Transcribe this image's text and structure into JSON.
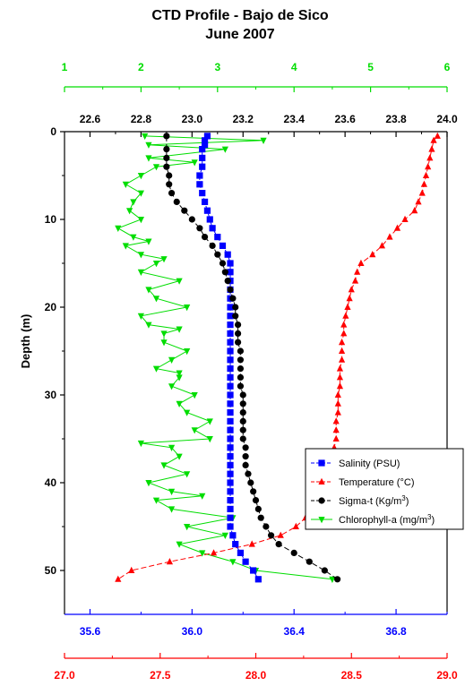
{
  "chart_data": {
    "type": "line",
    "title": "CTD Profile - Bajo de Sico",
    "subtitle": "June 2007",
    "ylabel": "Depth (m)",
    "ylim": [
      0,
      55
    ],
    "y_ticks": [
      0,
      10,
      20,
      30,
      40,
      50
    ],
    "y_tick_labels": [
      "0",
      "10",
      "20",
      "30",
      "40",
      "50"
    ],
    "y_inverted": true,
    "axes": {
      "chlorophyll": {
        "position": "top-outer",
        "color": "#00dd00",
        "range": [
          1,
          6
        ],
        "ticks": [
          1,
          2,
          3,
          4,
          5,
          6
        ],
        "tick_labels": [
          "1",
          "2",
          "3",
          "4",
          "5",
          "6"
        ]
      },
      "sigma": {
        "position": "top-inner",
        "color": "#000000",
        "range": [
          22.5,
          24.0
        ],
        "ticks": [
          22.6,
          22.8,
          23.0,
          23.2,
          23.4,
          23.6,
          23.8,
          24.0
        ],
        "tick_labels": [
          "22.6",
          "22.8",
          "23.0",
          "23.2",
          "23.4",
          "23.6",
          "23.8",
          "24.0"
        ]
      },
      "salinity": {
        "position": "bottom-inner",
        "color": "#0000ff",
        "range": [
          35.5,
          37.0
        ],
        "ticks": [
          35.6,
          36.0,
          36.4,
          36.8
        ],
        "tick_labels": [
          "35.6",
          "36.0",
          "36.4",
          "36.8"
        ]
      },
      "temperature": {
        "position": "bottom-outer",
        "color": "#ff0000",
        "range": [
          27.0,
          29.0
        ],
        "ticks": [
          27.0,
          27.5,
          28.0,
          28.5,
          29.0
        ],
        "tick_labels": [
          "27.0",
          "27.5",
          "28.0",
          "28.5",
          "29.0"
        ]
      }
    },
    "legend": {
      "position": "right",
      "entries": [
        {
          "series": "salinity",
          "text": "Salinity (PSU)",
          "sup": ""
        },
        {
          "series": "temperature",
          "text": "Temperature (°C)",
          "sup": ""
        },
        {
          "series": "sigma",
          "text": "Sigma-t (Kg/m",
          "sup": "3"
        },
        {
          "series": "chlorophyll",
          "text": "Chlorophyll-a (mg/m",
          "sup": "3"
        }
      ]
    },
    "series": [
      {
        "key": "salinity",
        "name": "Salinity (PSU)",
        "axis": "salinity",
        "color": "#0000ff",
        "marker": "square",
        "points": [
          [
            36.06,
            0.5
          ],
          [
            36.05,
            1
          ],
          [
            36.05,
            1.5
          ],
          [
            36.04,
            2
          ],
          [
            36.04,
            3
          ],
          [
            36.04,
            4
          ],
          [
            36.03,
            5
          ],
          [
            36.03,
            6
          ],
          [
            36.04,
            7
          ],
          [
            36.05,
            8
          ],
          [
            36.06,
            9
          ],
          [
            36.07,
            10
          ],
          [
            36.08,
            11
          ],
          [
            36.1,
            12
          ],
          [
            36.12,
            13
          ],
          [
            36.14,
            14
          ],
          [
            36.15,
            15
          ],
          [
            36.15,
            16
          ],
          [
            36.15,
            17
          ],
          [
            36.15,
            18
          ],
          [
            36.15,
            19
          ],
          [
            36.15,
            20
          ],
          [
            36.15,
            21
          ],
          [
            36.15,
            22
          ],
          [
            36.15,
            23
          ],
          [
            36.15,
            24
          ],
          [
            36.15,
            25
          ],
          [
            36.15,
            26
          ],
          [
            36.15,
            27
          ],
          [
            36.15,
            28
          ],
          [
            36.15,
            29
          ],
          [
            36.15,
            30
          ],
          [
            36.15,
            31
          ],
          [
            36.15,
            32
          ],
          [
            36.15,
            33
          ],
          [
            36.15,
            34
          ],
          [
            36.15,
            35
          ],
          [
            36.15,
            36
          ],
          [
            36.15,
            37
          ],
          [
            36.15,
            38
          ],
          [
            36.15,
            39
          ],
          [
            36.15,
            40
          ],
          [
            36.15,
            41
          ],
          [
            36.15,
            42
          ],
          [
            36.15,
            43
          ],
          [
            36.15,
            44
          ],
          [
            36.15,
            45
          ],
          [
            36.16,
            46
          ],
          [
            36.17,
            47
          ],
          [
            36.19,
            48
          ],
          [
            36.21,
            49
          ],
          [
            36.24,
            50
          ],
          [
            36.26,
            51
          ]
        ]
      },
      {
        "key": "temperature",
        "name": "Temperature (°C)",
        "axis": "temperature",
        "color": "#ff0000",
        "marker": "triangle-up",
        "points": [
          [
            28.95,
            0.5
          ],
          [
            28.93,
            1
          ],
          [
            28.92,
            2
          ],
          [
            28.91,
            3
          ],
          [
            28.9,
            4
          ],
          [
            28.89,
            5
          ],
          [
            28.88,
            6
          ],
          [
            28.87,
            7
          ],
          [
            28.85,
            8
          ],
          [
            28.83,
            9
          ],
          [
            28.78,
            10
          ],
          [
            28.74,
            11
          ],
          [
            28.7,
            12
          ],
          [
            28.66,
            13
          ],
          [
            28.61,
            14
          ],
          [
            28.55,
            15
          ],
          [
            28.53,
            16
          ],
          [
            28.52,
            17
          ],
          [
            28.5,
            18
          ],
          [
            28.49,
            19
          ],
          [
            28.48,
            20
          ],
          [
            28.47,
            21
          ],
          [
            28.46,
            22
          ],
          [
            28.46,
            23
          ],
          [
            28.45,
            24
          ],
          [
            28.45,
            25
          ],
          [
            28.45,
            26
          ],
          [
            28.44,
            27
          ],
          [
            28.44,
            28
          ],
          [
            28.44,
            29
          ],
          [
            28.43,
            30
          ],
          [
            28.43,
            31
          ],
          [
            28.43,
            32
          ],
          [
            28.42,
            33
          ],
          [
            28.42,
            34
          ],
          [
            28.42,
            35
          ],
          [
            28.41,
            36
          ],
          [
            28.41,
            37
          ],
          [
            28.4,
            38
          ],
          [
            28.39,
            39
          ],
          [
            28.37,
            40
          ],
          [
            28.35,
            41
          ],
          [
            28.33,
            42
          ],
          [
            28.3,
            43
          ],
          [
            28.26,
            44
          ],
          [
            28.21,
            45
          ],
          [
            28.13,
            46
          ],
          [
            27.98,
            47
          ],
          [
            27.78,
            48
          ],
          [
            27.55,
            49
          ],
          [
            27.35,
            50
          ],
          [
            27.28,
            51
          ]
        ]
      },
      {
        "key": "sigma",
        "name": "Sigma-t (Kg/m3)",
        "axis": "sigma",
        "color": "#000000",
        "marker": "circle",
        "points": [
          [
            22.9,
            0.5
          ],
          [
            22.9,
            2
          ],
          [
            22.9,
            3
          ],
          [
            22.9,
            4
          ],
          [
            22.91,
            5
          ],
          [
            22.91,
            6
          ],
          [
            22.92,
            7
          ],
          [
            22.94,
            8
          ],
          [
            22.97,
            9
          ],
          [
            23.0,
            10
          ],
          [
            23.03,
            11
          ],
          [
            23.05,
            12
          ],
          [
            23.08,
            13
          ],
          [
            23.1,
            14
          ],
          [
            23.12,
            15
          ],
          [
            23.13,
            16
          ],
          [
            23.14,
            17
          ],
          [
            23.15,
            18
          ],
          [
            23.16,
            19
          ],
          [
            23.17,
            20
          ],
          [
            23.17,
            21
          ],
          [
            23.18,
            22
          ],
          [
            23.18,
            23
          ],
          [
            23.18,
            24
          ],
          [
            23.19,
            25
          ],
          [
            23.19,
            26
          ],
          [
            23.19,
            27
          ],
          [
            23.19,
            28
          ],
          [
            23.19,
            29
          ],
          [
            23.2,
            30
          ],
          [
            23.2,
            31
          ],
          [
            23.2,
            32
          ],
          [
            23.2,
            33
          ],
          [
            23.2,
            34
          ],
          [
            23.2,
            35
          ],
          [
            23.21,
            36
          ],
          [
            23.21,
            37
          ],
          [
            23.21,
            38
          ],
          [
            23.22,
            39
          ],
          [
            23.23,
            40
          ],
          [
            23.24,
            41
          ],
          [
            23.25,
            42
          ],
          [
            23.26,
            43
          ],
          [
            23.27,
            44
          ],
          [
            23.29,
            45
          ],
          [
            23.31,
            46
          ],
          [
            23.34,
            47
          ],
          [
            23.4,
            48
          ],
          [
            23.46,
            49
          ],
          [
            23.52,
            50
          ],
          [
            23.57,
            51
          ]
        ]
      },
      {
        "key": "chlorophyll",
        "name": "Chlorophyll-a (mg/m3)",
        "axis": "chlorophyll",
        "color": "#00dd00",
        "marker": "triangle-down",
        "points": [
          [
            2.05,
            0.5
          ],
          [
            3.6,
            1
          ],
          [
            2.1,
            1.5
          ],
          [
            3.1,
            2
          ],
          [
            2.1,
            3
          ],
          [
            2.7,
            3.5
          ],
          [
            2.2,
            4
          ],
          [
            2.0,
            5
          ],
          [
            1.8,
            6
          ],
          [
            2.0,
            7
          ],
          [
            1.9,
            8
          ],
          [
            1.85,
            9
          ],
          [
            2.0,
            10
          ],
          [
            1.7,
            11
          ],
          [
            1.9,
            12
          ],
          [
            2.1,
            12.5
          ],
          [
            1.8,
            13
          ],
          [
            2.0,
            14
          ],
          [
            2.3,
            14.5
          ],
          [
            2.2,
            15
          ],
          [
            2.0,
            16
          ],
          [
            2.5,
            17
          ],
          [
            2.1,
            18
          ],
          [
            2.2,
            19
          ],
          [
            2.6,
            20
          ],
          [
            2.0,
            21
          ],
          [
            2.1,
            22
          ],
          [
            2.5,
            22.5
          ],
          [
            2.3,
            23
          ],
          [
            2.3,
            24
          ],
          [
            2.6,
            25
          ],
          [
            2.4,
            26
          ],
          [
            2.2,
            27
          ],
          [
            2.5,
            27.5
          ],
          [
            2.5,
            28
          ],
          [
            2.4,
            29
          ],
          [
            2.7,
            30
          ],
          [
            2.5,
            31
          ],
          [
            2.6,
            32
          ],
          [
            2.9,
            33
          ],
          [
            2.7,
            34
          ],
          [
            2.9,
            35
          ],
          [
            2.0,
            35.5
          ],
          [
            2.4,
            36
          ],
          [
            2.5,
            37
          ],
          [
            2.3,
            38
          ],
          [
            2.6,
            39
          ],
          [
            2.1,
            40
          ],
          [
            2.4,
            41
          ],
          [
            2.8,
            41.5
          ],
          [
            2.2,
            42
          ],
          [
            2.4,
            43
          ],
          [
            3.2,
            44
          ],
          [
            2.6,
            45
          ],
          [
            3.1,
            46
          ],
          [
            2.5,
            47
          ],
          [
            2.8,
            48
          ],
          [
            3.2,
            49
          ],
          [
            3.5,
            50
          ],
          [
            4.5,
            51
          ]
        ]
      }
    ]
  }
}
